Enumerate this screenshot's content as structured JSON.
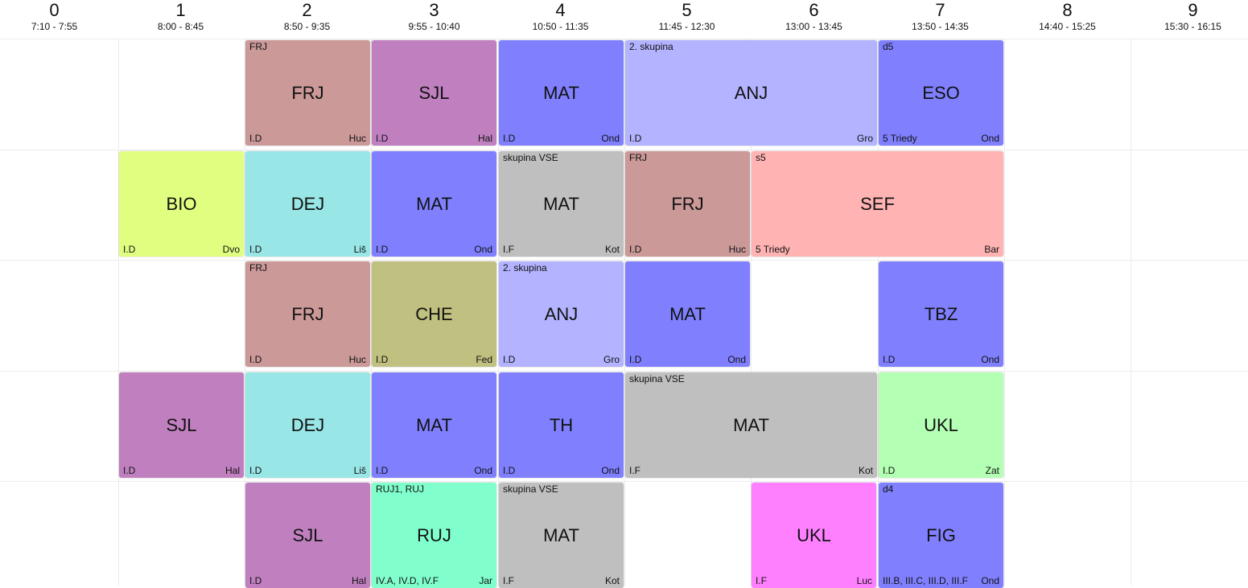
{
  "periods": [
    {
      "num": "0",
      "time": "7:10 - 7:55"
    },
    {
      "num": "1",
      "time": "8:00 - 8:45"
    },
    {
      "num": "2",
      "time": "8:50 - 9:35"
    },
    {
      "num": "3",
      "time": "9:55 - 10:40"
    },
    {
      "num": "4",
      "time": "10:50 - 11:35"
    },
    {
      "num": "5",
      "time": "11:45 - 12:30"
    },
    {
      "num": "6",
      "time": "13:00 - 13:45"
    },
    {
      "num": "7",
      "time": "13:50 - 14:35"
    },
    {
      "num": "8",
      "time": "14:40 - 15:25"
    },
    {
      "num": "9",
      "time": "15:30 - 16:15"
    }
  ],
  "colors": {
    "FRJ": "#cc9999",
    "SJL": "#c080c0",
    "MAT": "#8080ff",
    "ANJ": "#b3b3ff",
    "BIO": "#e0ff80",
    "DEJ": "#99e6e6",
    "CHE": "#c0c080",
    "VSE": "#bfbfbf",
    "SEF": "#ffb3b3",
    "TBZ": "#8080ff",
    "TH": "#8080ff",
    "UKL_G": "#b3ffb3",
    "UKL_P": "#ff80ff",
    "RUJ": "#80ffcc",
    "FIG": "#8080ff",
    "ESO": "#8080ff"
  },
  "lessons": [
    {
      "day": 0,
      "start": 2,
      "span": 1,
      "subject": "FRJ",
      "group": "FRJ",
      "class": "I.D",
      "teacher": "Huc",
      "color": "#cc9999"
    },
    {
      "day": 0,
      "start": 3,
      "span": 1,
      "subject": "SJL",
      "group": "",
      "class": "I.D",
      "teacher": "Hal",
      "color": "#c080c0"
    },
    {
      "day": 0,
      "start": 4,
      "span": 1,
      "subject": "MAT",
      "group": "",
      "class": "I.D",
      "teacher": "Ond",
      "color": "#8080ff"
    },
    {
      "day": 0,
      "start": 5,
      "span": 2,
      "subject": "ANJ",
      "group": "2. skupina",
      "class": "I.D",
      "teacher": "Gro",
      "color": "#b3b3ff"
    },
    {
      "day": 0,
      "start": 7,
      "span": 1,
      "subject": "ESO",
      "group": "d5",
      "class": "5 Triedy",
      "teacher": "Ond",
      "color": "#8080ff"
    },
    {
      "day": 1,
      "start": 1,
      "span": 1,
      "subject": "BIO",
      "group": "",
      "class": "I.D",
      "teacher": "Dvo",
      "color": "#e0ff80"
    },
    {
      "day": 1,
      "start": 2,
      "span": 1,
      "subject": "DEJ",
      "group": "",
      "class": "I.D",
      "teacher": "Liš",
      "color": "#99e6e6"
    },
    {
      "day": 1,
      "start": 3,
      "span": 1,
      "subject": "MAT",
      "group": "",
      "class": "I.D",
      "teacher": "Ond",
      "color": "#8080ff"
    },
    {
      "day": 1,
      "start": 4,
      "span": 1,
      "subject": "MAT",
      "group": "skupina VSE",
      "class": "I.F",
      "teacher": "Kot",
      "color": "#bfbfbf"
    },
    {
      "day": 1,
      "start": 5,
      "span": 1,
      "subject": "FRJ",
      "group": "FRJ",
      "class": "I.D",
      "teacher": "Huc",
      "color": "#cc9999"
    },
    {
      "day": 1,
      "start": 6,
      "span": 2,
      "subject": "SEF",
      "group": "s5",
      "class": "5 Triedy",
      "teacher": "Bar",
      "color": "#ffb3b3"
    },
    {
      "day": 2,
      "start": 2,
      "span": 1,
      "subject": "FRJ",
      "group": "FRJ",
      "class": "I.D",
      "teacher": "Huc",
      "color": "#cc9999"
    },
    {
      "day": 2,
      "start": 3,
      "span": 1,
      "subject": "CHE",
      "group": "",
      "class": "I.D",
      "teacher": "Fed",
      "color": "#c0c080"
    },
    {
      "day": 2,
      "start": 4,
      "span": 1,
      "subject": "ANJ",
      "group": "2. skupina",
      "class": "I.D",
      "teacher": "Gro",
      "color": "#b3b3ff"
    },
    {
      "day": 2,
      "start": 5,
      "span": 1,
      "subject": "MAT",
      "group": "",
      "class": "I.D",
      "teacher": "Ond",
      "color": "#8080ff"
    },
    {
      "day": 2,
      "start": 7,
      "span": 1,
      "subject": "TBZ",
      "group": "",
      "class": "I.D",
      "teacher": "Ond",
      "color": "#8080ff"
    },
    {
      "day": 3,
      "start": 1,
      "span": 1,
      "subject": "SJL",
      "group": "",
      "class": "I.D",
      "teacher": "Hal",
      "color": "#c080c0"
    },
    {
      "day": 3,
      "start": 2,
      "span": 1,
      "subject": "DEJ",
      "group": "",
      "class": "I.D",
      "teacher": "Liš",
      "color": "#99e6e6"
    },
    {
      "day": 3,
      "start": 3,
      "span": 1,
      "subject": "MAT",
      "group": "",
      "class": "I.D",
      "teacher": "Ond",
      "color": "#8080ff"
    },
    {
      "day": 3,
      "start": 4,
      "span": 1,
      "subject": "TH",
      "group": "",
      "class": "I.D",
      "teacher": "Ond",
      "color": "#8080ff"
    },
    {
      "day": 3,
      "start": 5,
      "span": 2,
      "subject": "MAT",
      "group": "skupina VSE",
      "class": "I.F",
      "teacher": "Kot",
      "color": "#bfbfbf"
    },
    {
      "day": 3,
      "start": 7,
      "span": 1,
      "subject": "UKL",
      "group": "",
      "class": "I.D",
      "teacher": "Zat",
      "color": "#b3ffb3"
    },
    {
      "day": 4,
      "start": 2,
      "span": 1,
      "subject": "SJL",
      "group": "",
      "class": "I.D",
      "teacher": "Hal",
      "color": "#c080c0"
    },
    {
      "day": 4,
      "start": 3,
      "span": 1,
      "subject": "RUJ",
      "group": "RUJ1, RUJ",
      "class": "IV.A, IV.D, IV.F",
      "teacher": "Jar",
      "color": "#80ffcc"
    },
    {
      "day": 4,
      "start": 4,
      "span": 1,
      "subject": "MAT",
      "group": "skupina VSE",
      "class": "I.F",
      "teacher": "Kot",
      "color": "#bfbfbf"
    },
    {
      "day": 4,
      "start": 6,
      "span": 1,
      "subject": "UKL",
      "group": "",
      "class": "I.F",
      "teacher": "Luc",
      "color": "#ff80ff"
    },
    {
      "day": 4,
      "start": 7,
      "span": 1,
      "subject": "FIG",
      "group": "d4",
      "class": "III.B, III.C, III.D, III.F",
      "teacher": "Ond",
      "color": "#8080ff"
    }
  ]
}
